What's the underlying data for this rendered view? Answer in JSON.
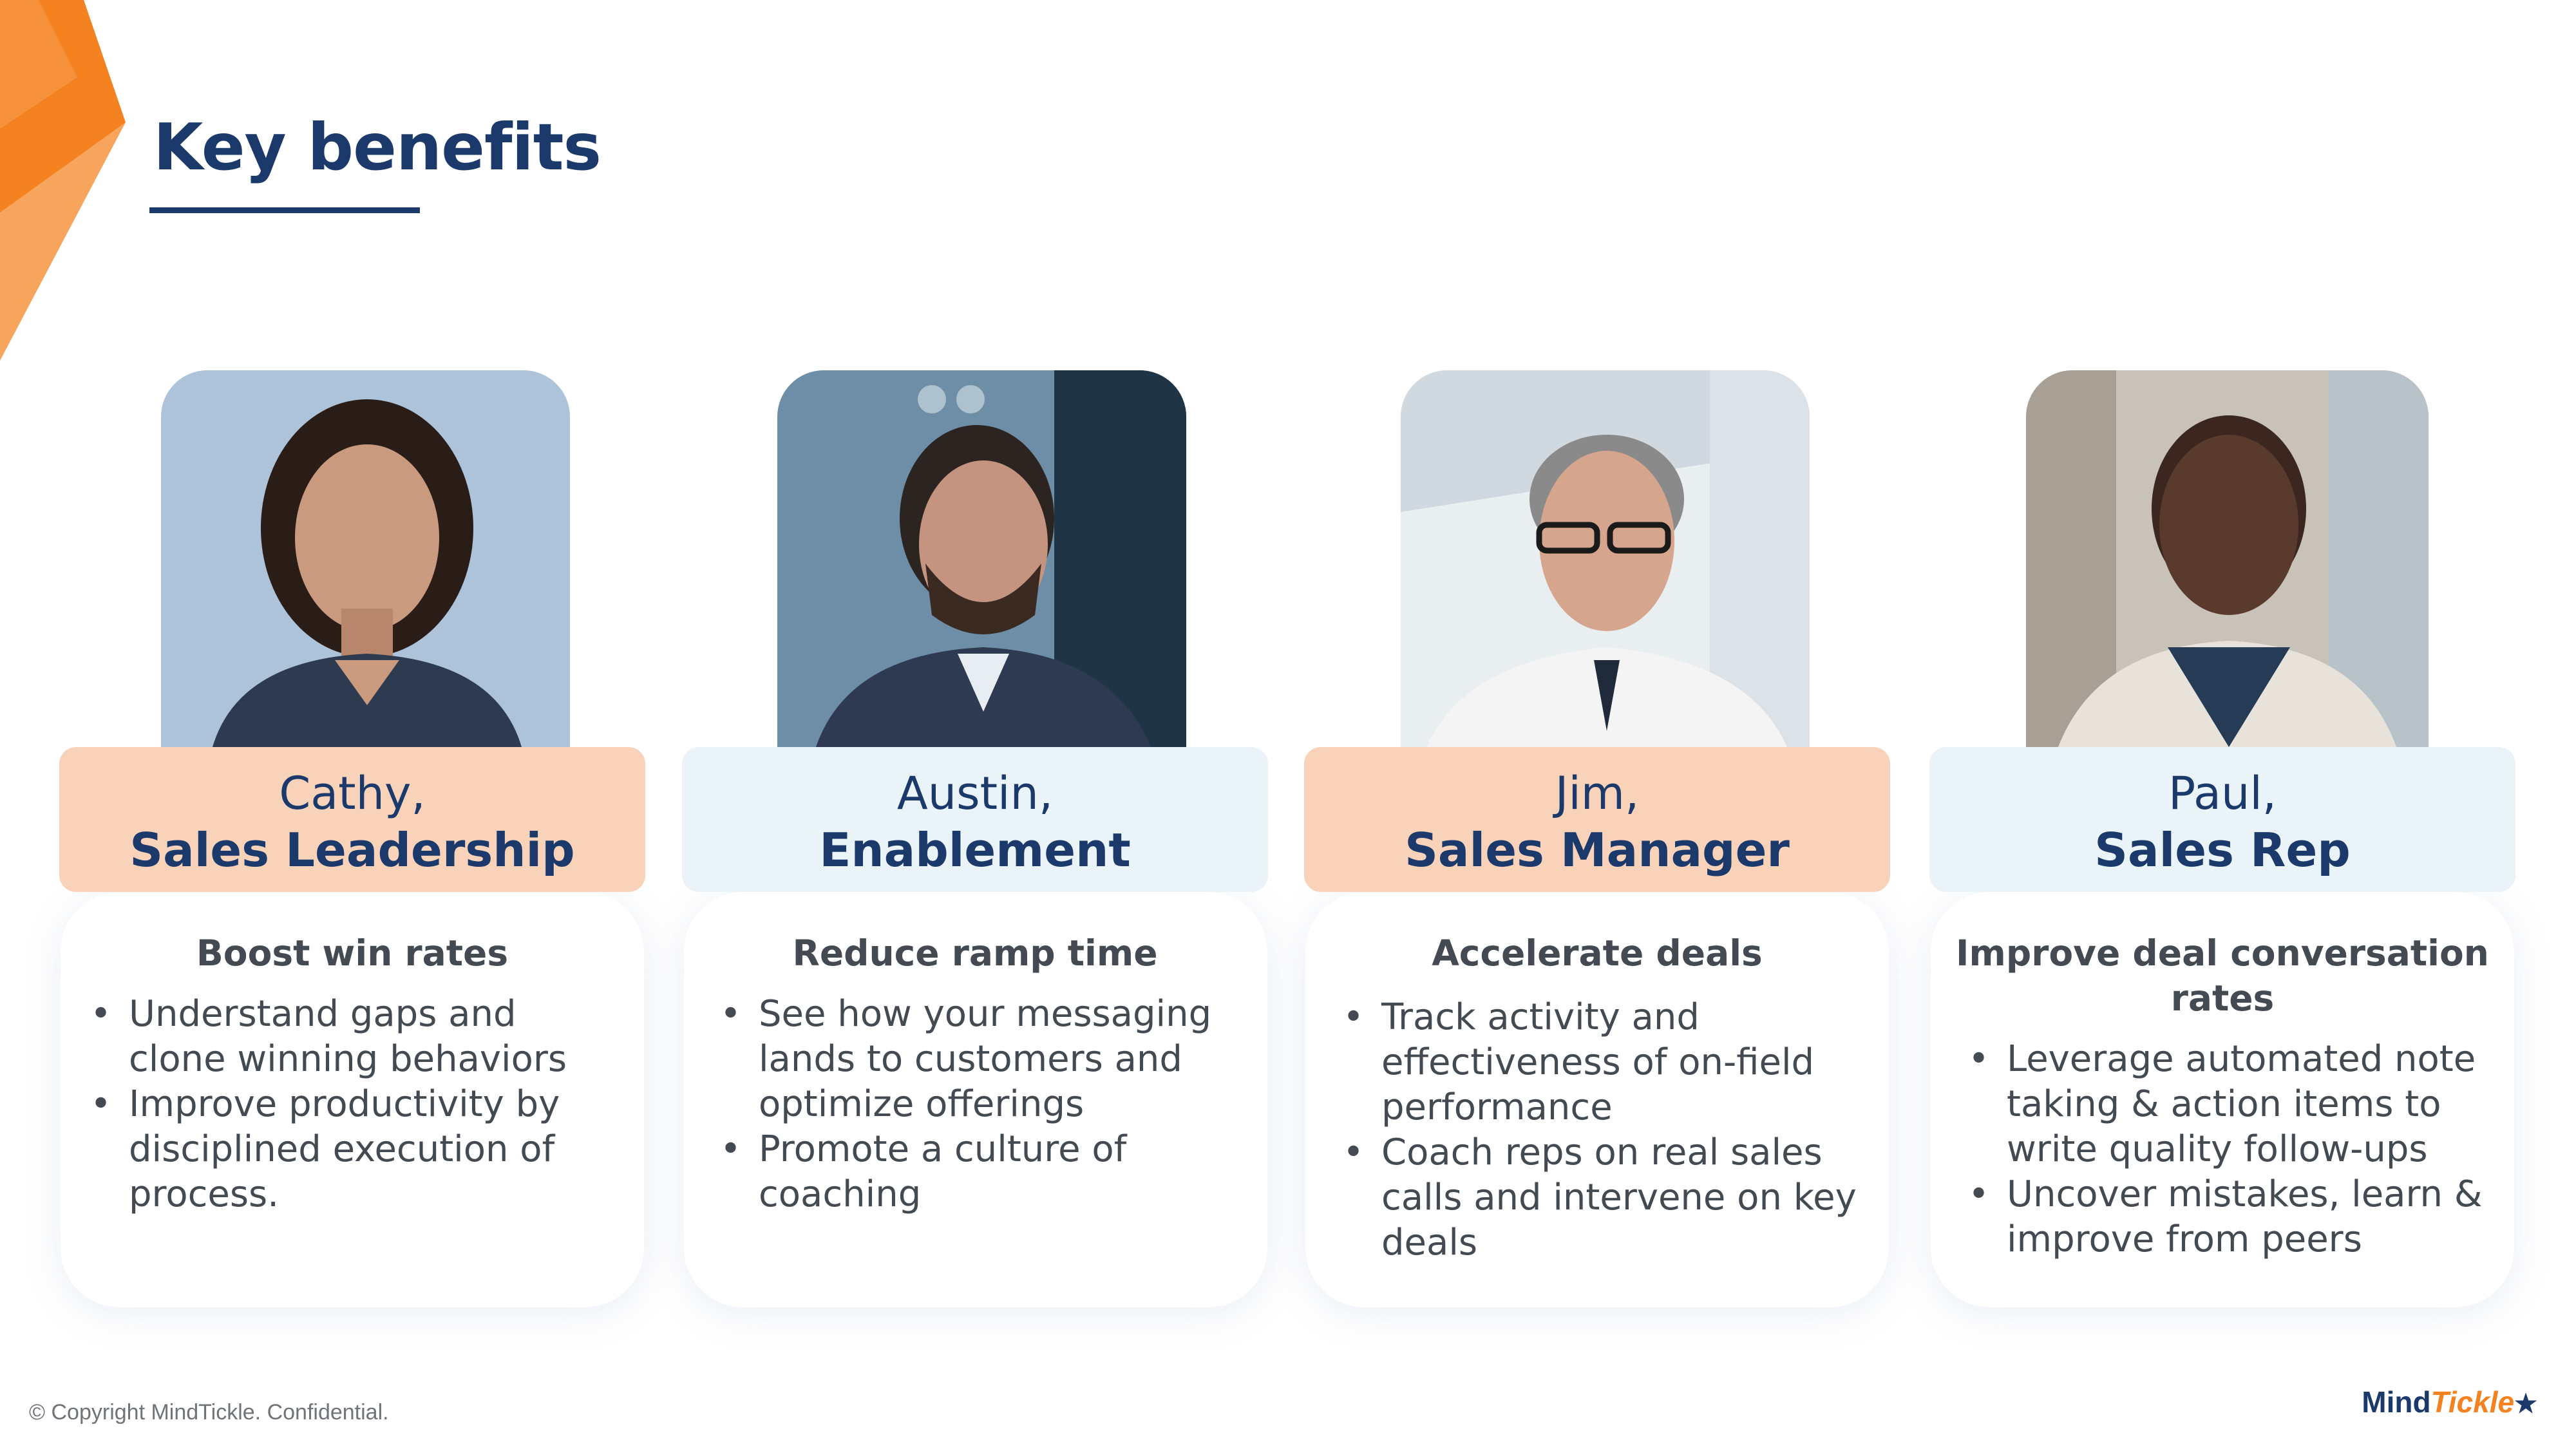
{
  "slide": {
    "title": "Key benefits",
    "accent_color": "#f58220",
    "brand_color": "#1b3a6b"
  },
  "personas": [
    {
      "name": "Cathy,",
      "role": "Sales Leadership",
      "photo_alt": "woman-portrait",
      "benefit_title": "Boost win rates",
      "bullets": [
        "Understand gaps and clone winning behaviors",
        "Improve productivity by disciplined execution of process."
      ]
    },
    {
      "name": "Austin,",
      "role": "Enablement",
      "photo_alt": "man-at-computer-portrait",
      "benefit_title": "Reduce ramp time",
      "bullets": [
        "See how your messaging lands to customers and optimize offerings",
        "Promote a culture of coaching"
      ]
    },
    {
      "name": "Jim,",
      "role": "Sales Manager",
      "photo_alt": "man-with-glasses-portrait",
      "benefit_title": "Accelerate deals",
      "bullets": [
        "Track activity and effectiveness of on-field performance",
        "Coach reps on real sales calls and intervene on key deals"
      ]
    },
    {
      "name": "Paul,",
      "role": "Sales Rep",
      "photo_alt": "man-smiling-portrait",
      "benefit_title": "Improve deal conversation rates",
      "bullets": [
        "Leverage automated note taking & action items to write quality follow-ups",
        "Uncover mistakes, learn & improve from peers"
      ]
    }
  ],
  "footer": {
    "copyright": "© Copyright MindTickle. Confidential.",
    "logo_mind": "Mind",
    "logo_tickle": "Tickle",
    "logo_mark": "★"
  }
}
